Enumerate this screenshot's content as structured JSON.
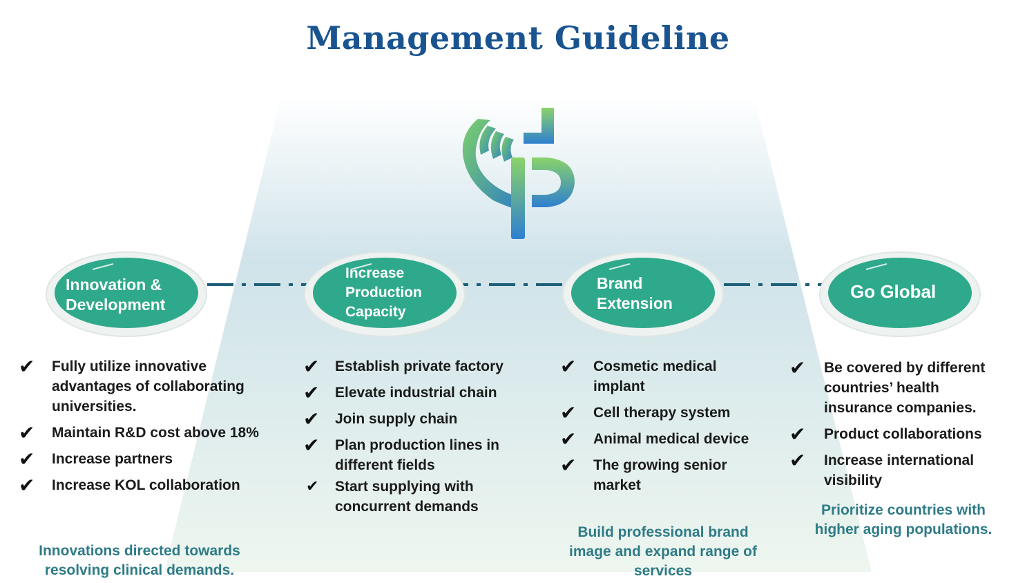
{
  "title": "Management Guideline",
  "colors": {
    "title": "#1a5490",
    "pillar_fill": "#2fa98b",
    "pillar_ring": "#eef3f1",
    "connector": "#1f5f7a",
    "note": "#2e7b86"
  },
  "logo": {
    "icon": "hand-p-logo-icon"
  },
  "pillars": [
    {
      "label": "Innovation &\nDevelopment",
      "items": [
        "Fully utilize innovative advantages of collaborating universities.",
        "Maintain R&D cost above 18%",
        "Increase partners",
        "Increase KOL collaboration"
      ],
      "note": "Innovations directed towards resolving clinical demands."
    },
    {
      "label": "Increase\nProduction\nCapacity",
      "items": [
        "Establish private factory",
        "Elevate industrial chain",
        "Join supply chain",
        "Plan production lines in different fields",
        "Start supplying with concurrent demands"
      ],
      "note": ""
    },
    {
      "label": "Brand\nExtension",
      "items": [
        "Cosmetic medical implant",
        "Cell therapy system",
        "Animal medical device",
        "The growing senior market"
      ],
      "note": "Build professional brand image and expand range of services"
    },
    {
      "label": "Go Global",
      "items": [
        "Be covered by different countries’ health insurance companies.",
        "Product collaborations",
        "Increase international visibility"
      ],
      "note": "Prioritize countries with higher aging populations."
    }
  ]
}
